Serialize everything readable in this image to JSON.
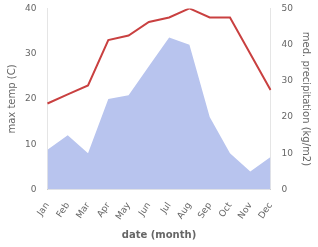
{
  "chart_data": {
    "type": "line",
    "categories": [
      "Jan",
      "Feb",
      "Mar",
      "Apr",
      "May",
      "Jun",
      "Jul",
      "Aug",
      "Sep",
      "Oct",
      "Nov",
      "Dec"
    ],
    "series": [
      {
        "type": "area",
        "color": "#b8c4ee",
        "axis": "y2",
        "values": [
          11,
          15,
          10,
          25,
          26,
          34,
          42,
          40,
          20,
          10,
          5,
          9
        ]
      },
      {
        "type": "line",
        "color": "#c94040",
        "values": [
          19,
          21,
          23,
          33,
          34,
          37,
          38,
          40,
          38,
          38,
          30,
          22
        ]
      }
    ],
    "xlabel": "date (month)",
    "ylabel": "max temp (C)",
    "y2label": "med. precipitation (kg/m2)",
    "ylim": [
      0,
      40
    ],
    "yticks": [
      0,
      10,
      20,
      30,
      40
    ],
    "y2lim": [
      0,
      50
    ],
    "y2ticks": [
      0,
      10,
      20,
      30,
      40,
      50
    ],
    "grid": false
  }
}
